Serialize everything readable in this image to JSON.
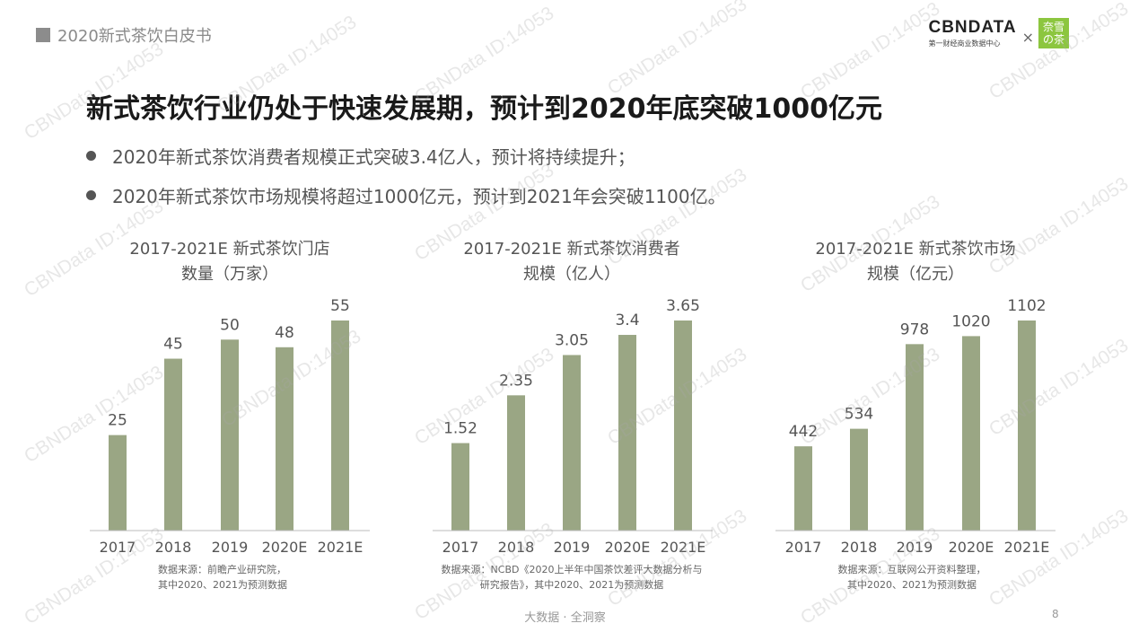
{
  "header": {
    "report_title": "2020新式茶饮白皮书",
    "logo_cbn": "CBNDATA",
    "logo_cbn_sub": "第一财经商业数据中心",
    "logo_times": "×",
    "logo_nayuki": "奈雪の茶"
  },
  "headline": "新式茶饮行业仍处于快速发展期，预计到2020年底突破1000亿元",
  "bullets": [
    "2020年新式茶饮消费者规模正式突破3.4亿人，预计将持续提升；",
    "2020年新式茶饮市场规模将超过1000亿元，预计到2021年会突破1100亿。"
  ],
  "watermark": "CBNData ID:14053",
  "colors": {
    "bar": "#9aa684",
    "axis": "#bbbbbb"
  },
  "chart_data": [
    {
      "type": "bar",
      "title": "2017-2021E 新式茶饮门店",
      "title_line2": "数量（万家）",
      "categories": [
        "2017",
        "2018",
        "2019",
        "2020E",
        "2021E"
      ],
      "values": [
        25,
        45,
        50,
        48,
        55
      ],
      "value_labels": [
        "25",
        "45",
        "50",
        "48",
        "55"
      ],
      "source_line1": "数据来源：前瞻产业研究院，",
      "source_line2": "其中2020、2021为预测数据"
    },
    {
      "type": "bar",
      "title": "2017-2021E 新式茶饮消费者",
      "title_line2": "规模（亿人）",
      "categories": [
        "2017",
        "2018",
        "2019",
        "2020E",
        "2021E"
      ],
      "values": [
        1.52,
        2.35,
        3.05,
        3.4,
        3.65
      ],
      "value_labels": [
        "1.52",
        "2.35",
        "3.05",
        "3.4",
        "3.65"
      ],
      "source_line1": "数据来源：NCBD《2020上半年中国茶饮差评大数据分析与",
      "source_line2": "研究报告》，其中2020、2021为预测数据"
    },
    {
      "type": "bar",
      "title": "2017-2021E 新式茶饮市场",
      "title_line2": "规模（亿元）",
      "categories": [
        "2017",
        "2018",
        "2019",
        "2020E",
        "2021E"
      ],
      "values": [
        442,
        534,
        978,
        1020,
        1102
      ],
      "value_labels": [
        "442",
        "534",
        "978",
        "1020",
        "1102"
      ],
      "source_line1": "数据来源：互联网公开资料整理，",
      "source_line2": "其中2020、2021为预测数据"
    }
  ],
  "footer": {
    "slogan": "大数据 · 全洞察",
    "page_number": "8"
  }
}
